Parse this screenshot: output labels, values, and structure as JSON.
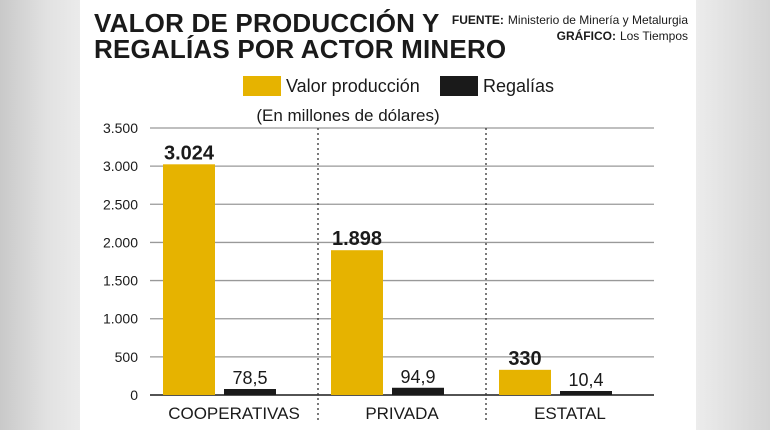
{
  "title_lines": [
    "VALOR DE PRODUCCIÓN Y",
    "REGALÍAS POR ACTOR MINERO"
  ],
  "credits": {
    "source_label": "FUENTE:",
    "source": "Ministerio de Minería y Metalurgia",
    "graphic_label": "GRÁFICO:",
    "graphic": "Los Tiempos"
  },
  "colors": {
    "valor": "#e6b300",
    "regalias": "#1a1a1a",
    "grid": "#999999"
  },
  "chart_data": {
    "type": "bar",
    "subtitle": "(En millones de dólares)",
    "categories": [
      "COOPERATIVAS",
      "PRIVADA",
      "ESTATAL"
    ],
    "series": [
      {
        "name": "Valor producción",
        "values": [
          3024,
          1898,
          330
        ],
        "labels": [
          "3.024",
          "1.898",
          "330"
        ]
      },
      {
        "name": "Regalías",
        "values": [
          78.5,
          94.9,
          10.4
        ],
        "labels": [
          "78,5",
          "94,9",
          "10,4"
        ]
      }
    ],
    "ylim": [
      0,
      3500
    ],
    "yticks": [
      0,
      500,
      1000,
      1500,
      2000,
      2500,
      3000,
      3500
    ],
    "ytick_labels": [
      "0",
      "500",
      "1.000",
      "1.500",
      "2.000",
      "2.500",
      "3.000",
      "3.500"
    ],
    "grid": true,
    "legend_position": "top"
  }
}
